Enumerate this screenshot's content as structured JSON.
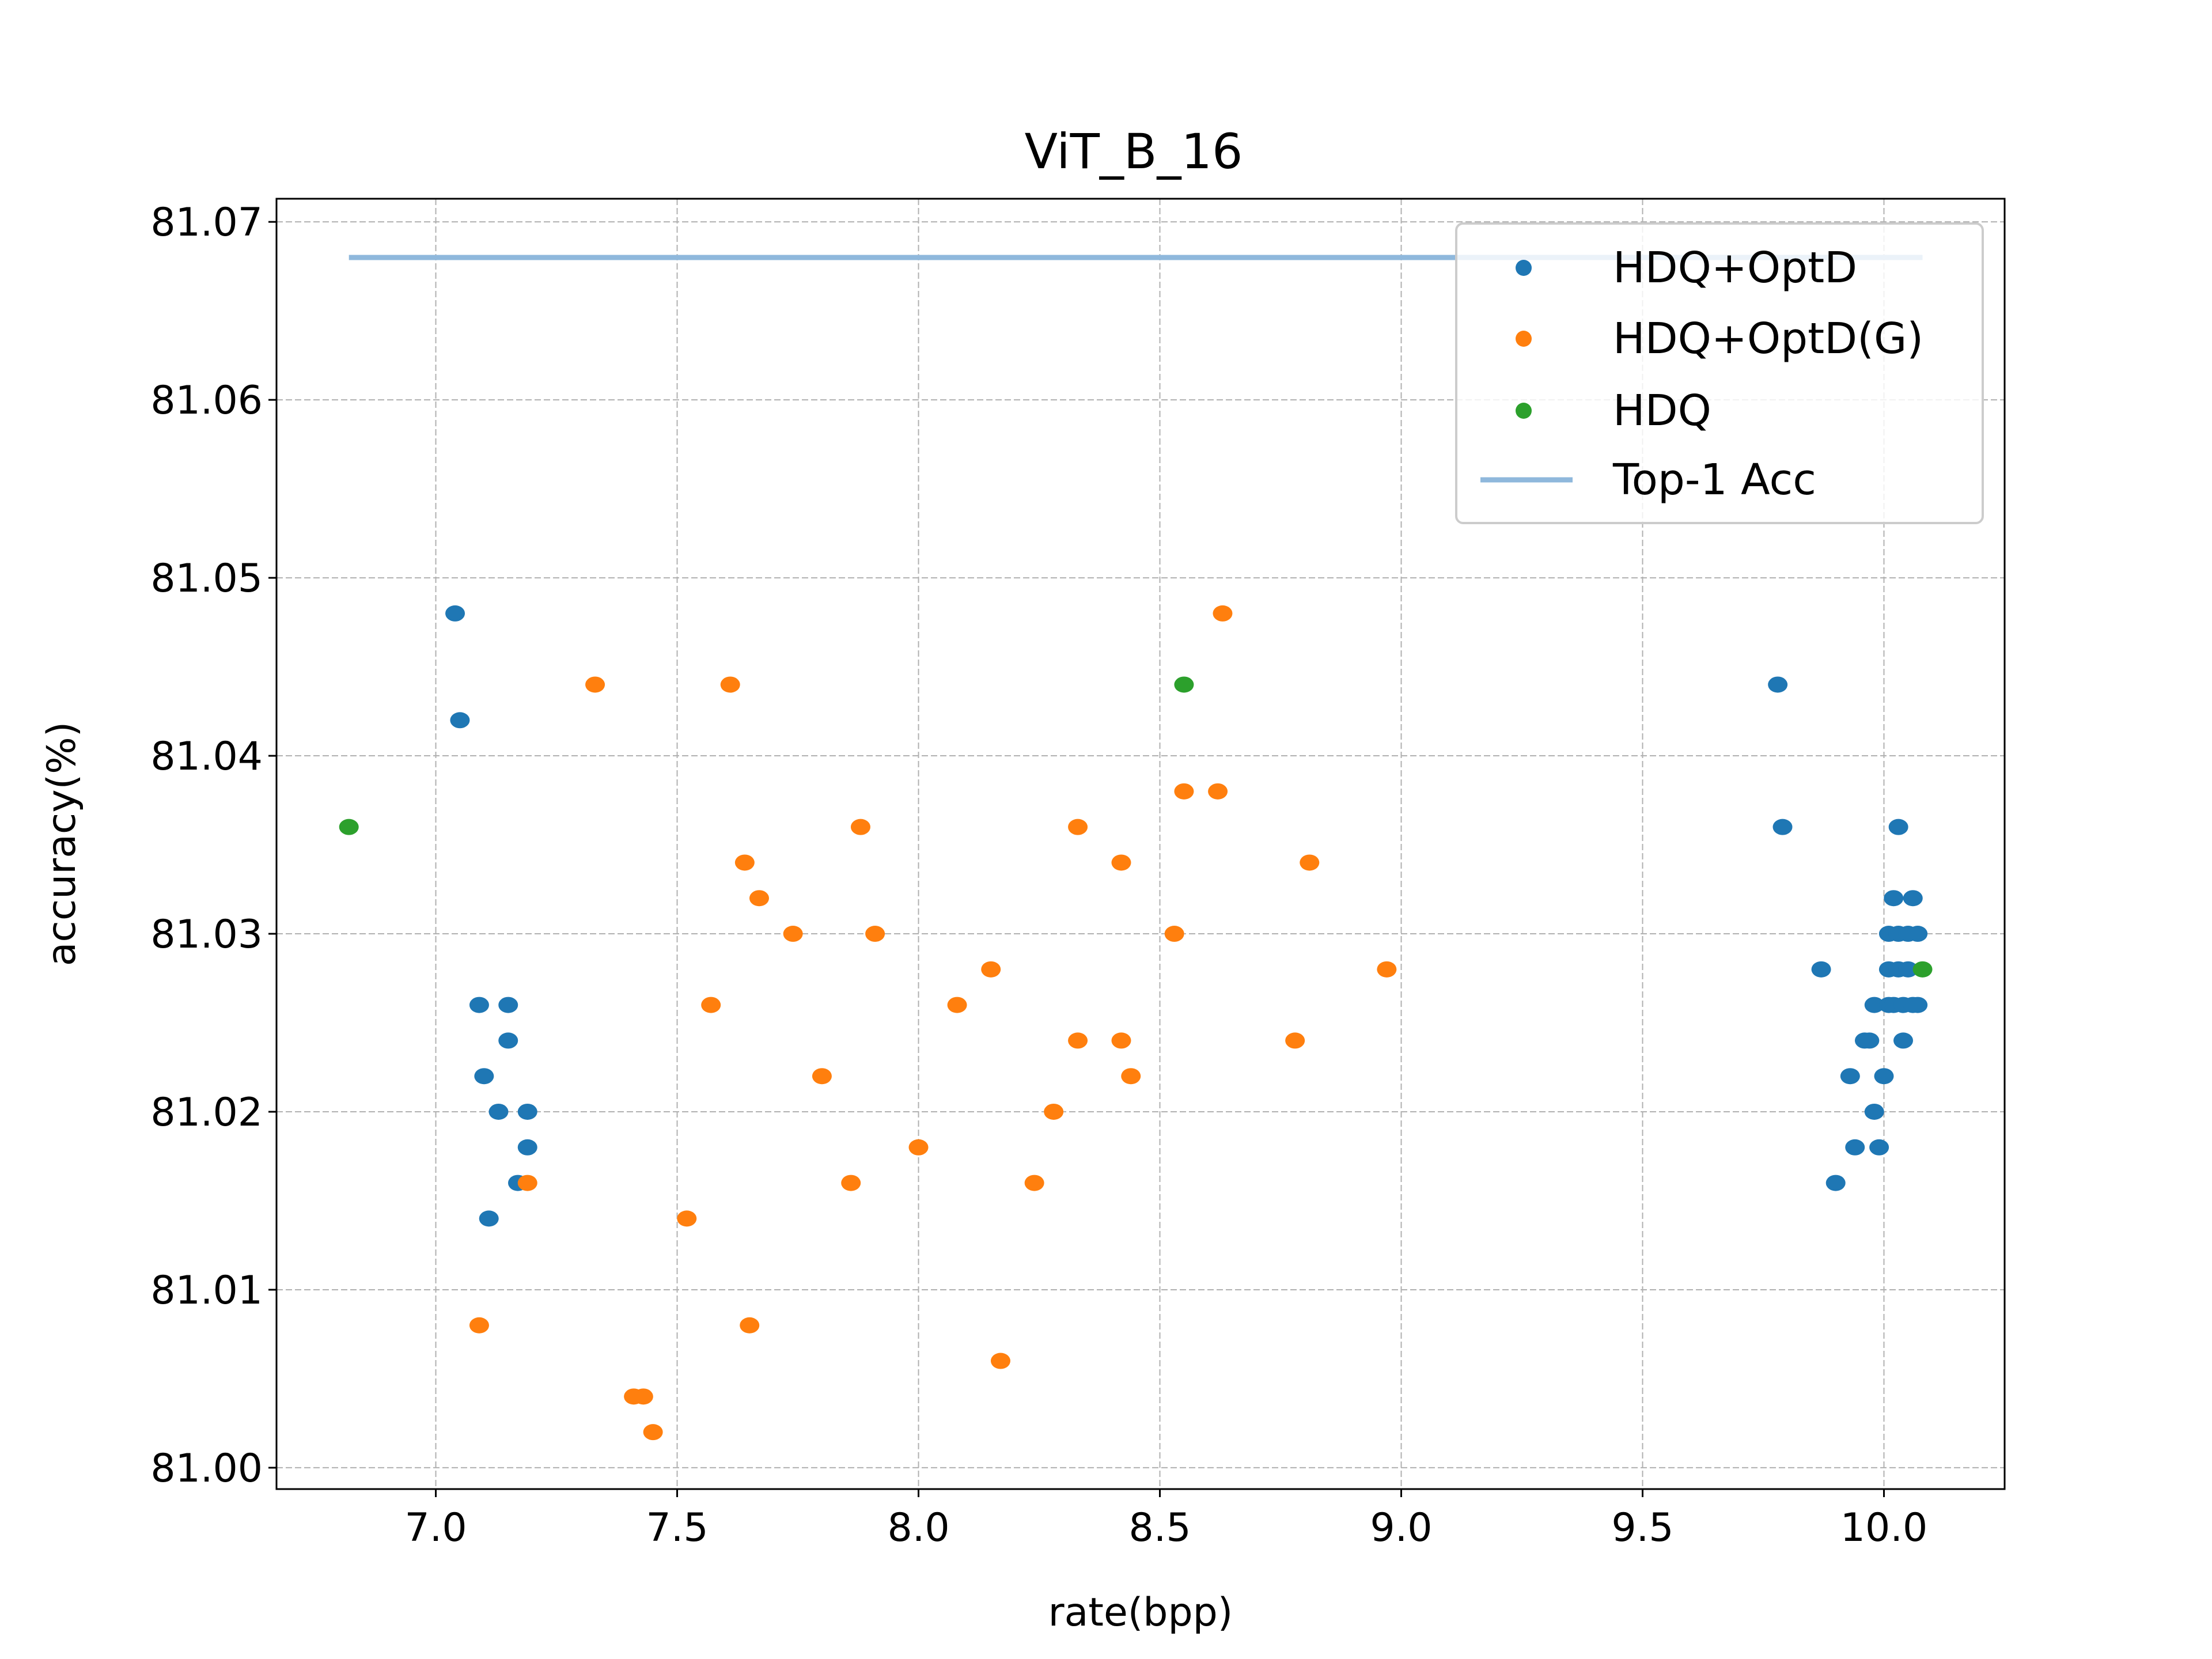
{
  "chart_data": {
    "type": "scatter",
    "title": "ViT_B_16",
    "xlabel": "rate(bpp)",
    "ylabel": "accuracy(%)",
    "xlim": [
      6.67,
      10.25
    ],
    "ylim": [
      80.9988,
      81.0713
    ],
    "xticks": [
      7.0,
      7.5,
      8.0,
      8.5,
      9.0,
      9.5,
      10.0
    ],
    "xtick_labels": [
      "7.0",
      "7.5",
      "8.0",
      "8.5",
      "9.0",
      "9.5",
      "10.0"
    ],
    "yticks": [
      81.0,
      81.01,
      81.02,
      81.03,
      81.04,
      81.05,
      81.06,
      81.07
    ],
    "ytick_labels": [
      "81.00",
      "81.01",
      "81.02",
      "81.03",
      "81.04",
      "81.05",
      "81.06",
      "81.07"
    ],
    "grid": true,
    "legend_position": "top-right",
    "series": [
      {
        "name": "HDQ+OptD",
        "color": "#1f77b4",
        "kind": "scatter",
        "points": [
          [
            7.04,
            81.048
          ],
          [
            7.05,
            81.042
          ],
          [
            7.09,
            81.026
          ],
          [
            7.1,
            81.022
          ],
          [
            7.11,
            81.014
          ],
          [
            7.13,
            81.02
          ],
          [
            7.15,
            81.026
          ],
          [
            7.15,
            81.024
          ],
          [
            7.17,
            81.016
          ],
          [
            7.19,
            81.02
          ],
          [
            7.19,
            81.018
          ],
          [
            9.78,
            81.044
          ],
          [
            9.79,
            81.036
          ],
          [
            9.87,
            81.028
          ],
          [
            9.9,
            81.016
          ],
          [
            9.93,
            81.022
          ],
          [
            9.94,
            81.018
          ],
          [
            9.96,
            81.024
          ],
          [
            9.97,
            81.024
          ],
          [
            9.98,
            81.02
          ],
          [
            9.98,
            81.026
          ],
          [
            9.99,
            81.018
          ],
          [
            10.0,
            81.022
          ],
          [
            10.01,
            81.03
          ],
          [
            10.01,
            81.028
          ],
          [
            10.01,
            81.026
          ],
          [
            10.02,
            81.032
          ],
          [
            10.02,
            81.026
          ],
          [
            10.03,
            81.036
          ],
          [
            10.03,
            81.028
          ],
          [
            10.03,
            81.03
          ],
          [
            10.04,
            81.024
          ],
          [
            10.04,
            81.026
          ],
          [
            10.05,
            81.03
          ],
          [
            10.05,
            81.028
          ],
          [
            10.06,
            81.032
          ],
          [
            10.06,
            81.026
          ],
          [
            10.07,
            81.03
          ],
          [
            10.07,
            81.026
          ]
        ]
      },
      {
        "name": "HDQ+OptD(G)",
        "color": "#ff7f0e",
        "kind": "scatter",
        "points": [
          [
            7.09,
            81.008
          ],
          [
            7.19,
            81.016
          ],
          [
            7.33,
            81.044
          ],
          [
            7.41,
            81.004
          ],
          [
            7.43,
            81.004
          ],
          [
            7.45,
            81.002
          ],
          [
            7.52,
            81.014
          ],
          [
            7.57,
            81.026
          ],
          [
            7.61,
            81.044
          ],
          [
            7.64,
            81.034
          ],
          [
            7.65,
            81.008
          ],
          [
            7.67,
            81.032
          ],
          [
            7.74,
            81.03
          ],
          [
            7.8,
            81.022
          ],
          [
            7.86,
            81.016
          ],
          [
            7.88,
            81.036
          ],
          [
            7.91,
            81.03
          ],
          [
            8.0,
            81.018
          ],
          [
            8.08,
            81.026
          ],
          [
            8.15,
            81.028
          ],
          [
            8.17,
            81.006
          ],
          [
            8.24,
            81.016
          ],
          [
            8.28,
            81.02
          ],
          [
            8.33,
            81.036
          ],
          [
            8.33,
            81.024
          ],
          [
            8.42,
            81.034
          ],
          [
            8.42,
            81.024
          ],
          [
            8.44,
            81.022
          ],
          [
            8.53,
            81.03
          ],
          [
            8.55,
            81.038
          ],
          [
            8.62,
            81.038
          ],
          [
            8.63,
            81.048
          ],
          [
            8.78,
            81.024
          ],
          [
            8.81,
            81.034
          ],
          [
            8.97,
            81.028
          ]
        ]
      },
      {
        "name": "HDQ",
        "color": "#2ca02c",
        "kind": "scatter",
        "points": [
          [
            6.82,
            81.036
          ],
          [
            8.55,
            81.044
          ],
          [
            10.08,
            81.028
          ]
        ]
      },
      {
        "name": "Top-1 Acc",
        "color": "#8fb8dc",
        "kind": "line",
        "points": [
          [
            6.82,
            81.068
          ],
          [
            10.08,
            81.068
          ]
        ]
      }
    ]
  }
}
